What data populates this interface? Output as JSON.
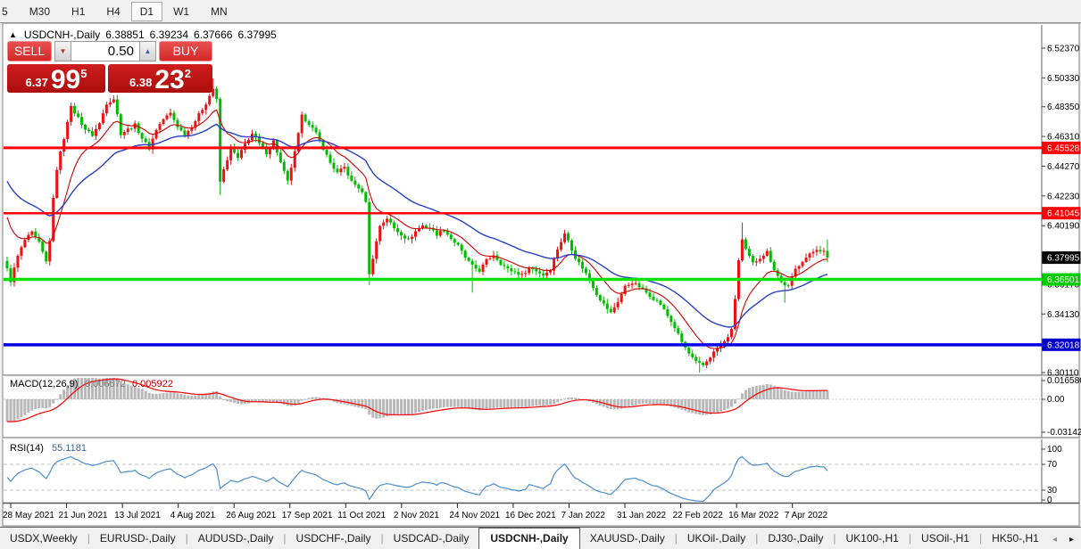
{
  "toolbar": {
    "timeframes": [
      "5",
      "M30",
      "H1",
      "H4",
      "D1",
      "W1",
      "MN"
    ],
    "active": "D1"
  },
  "icons": {
    "collapse": "▲",
    "spin_down": "▼",
    "spin_up": "▲",
    "tab_left": "◂",
    "tab_right": "▸"
  },
  "chart_header": {
    "title": "USDCNH-,Daily",
    "open": "6.38851",
    "high": "6.39234",
    "low": "6.37666",
    "close": "6.37995"
  },
  "trade_panel": {
    "sell_label": "SELL",
    "buy_label": "BUY",
    "volume": "0.50",
    "sell_price": {
      "small": "6.37",
      "big": "99",
      "sup": "5"
    },
    "buy_price": {
      "small": "6.38",
      "big": "23",
      "sup": "2"
    }
  },
  "chart_data": {
    "type": "candlestick",
    "symbol": "USDCNH-",
    "timeframe": "Daily",
    "up_color": "#ef1010",
    "down_color": "#00bc00",
    "bars_total": 232,
    "price_anchors": [
      [
        0,
        6.372
      ],
      [
        1,
        6.364
      ],
      [
        3,
        6.381
      ],
      [
        5,
        6.392
      ],
      [
        7,
        6.397
      ],
      [
        9,
        6.39
      ],
      [
        11,
        6.377
      ],
      [
        12,
        6.392
      ],
      [
        13,
        6.42
      ],
      [
        14,
        6.441
      ],
      [
        15,
        6.452
      ],
      [
        16,
        6.462
      ],
      [
        17,
        6.474
      ],
      [
        18,
        6.483
      ],
      [
        20,
        6.476
      ],
      [
        22,
        6.468
      ],
      [
        24,
        6.464
      ],
      [
        26,
        6.472
      ],
      [
        28,
        6.486
      ],
      [
        30,
        6.489
      ],
      [
        31,
        6.478
      ],
      [
        32,
        6.465
      ],
      [
        34,
        6.468
      ],
      [
        36,
        6.471
      ],
      [
        38,
        6.462
      ],
      [
        40,
        6.455
      ],
      [
        42,
        6.468
      ],
      [
        44,
        6.475
      ],
      [
        46,
        6.479
      ],
      [
        48,
        6.47
      ],
      [
        50,
        6.464
      ],
      [
        52,
        6.47
      ],
      [
        54,
        6.478
      ],
      [
        56,
        6.486
      ],
      [
        58,
        6.496
      ],
      [
        59,
        6.488
      ],
      [
        60,
        6.432
      ],
      [
        61,
        6.44
      ],
      [
        63,
        6.455
      ],
      [
        65,
        6.448
      ],
      [
        67,
        6.458
      ],
      [
        69,
        6.465
      ],
      [
        71,
        6.458
      ],
      [
        73,
        6.452
      ],
      [
        75,
        6.46
      ],
      [
        77,
        6.445
      ],
      [
        79,
        6.432
      ],
      [
        81,
        6.452
      ],
      [
        83,
        6.477
      ],
      [
        85,
        6.472
      ],
      [
        87,
        6.465
      ],
      [
        89,
        6.455
      ],
      [
        91,
        6.445
      ],
      [
        93,
        6.438
      ],
      [
        95,
        6.442
      ],
      [
        97,
        6.432
      ],
      [
        99,
        6.428
      ],
      [
        100,
        6.424
      ],
      [
        101,
        6.419
      ],
      [
        102,
        6.368
      ],
      [
        103,
        6.38
      ],
      [
        105,
        6.402
      ],
      [
        107,
        6.407
      ],
      [
        109,
        6.4
      ],
      [
        111,
        6.396
      ],
      [
        113,
        6.392
      ],
      [
        115,
        6.398
      ],
      [
        117,
        6.402
      ],
      [
        119,
        6.4
      ],
      [
        121,
        6.396
      ],
      [
        123,
        6.399
      ],
      [
        125,
        6.393
      ],
      [
        127,
        6.388
      ],
      [
        129,
        6.38
      ],
      [
        131,
        6.374
      ],
      [
        133,
        6.371
      ],
      [
        135,
        6.378
      ],
      [
        137,
        6.382
      ],
      [
        139,
        6.376
      ],
      [
        141,
        6.372
      ],
      [
        143,
        6.37
      ],
      [
        145,
        6.368
      ],
      [
        147,
        6.373
      ],
      [
        149,
        6.371
      ],
      [
        151,
        6.368
      ],
      [
        153,
        6.372
      ],
      [
        155,
        6.386
      ],
      [
        157,
        6.396
      ],
      [
        158,
        6.392
      ],
      [
        160,
        6.38
      ],
      [
        162,
        6.373
      ],
      [
        164,
        6.365
      ],
      [
        166,
        6.355
      ],
      [
        168,
        6.348
      ],
      [
        170,
        6.342
      ],
      [
        172,
        6.35
      ],
      [
        174,
        6.36
      ],
      [
        176,
        6.363
      ],
      [
        178,
        6.36
      ],
      [
        180,
        6.356
      ],
      [
        182,
        6.352
      ],
      [
        184,
        6.348
      ],
      [
        186,
        6.34
      ],
      [
        188,
        6.332
      ],
      [
        190,
        6.322
      ],
      [
        192,
        6.314
      ],
      [
        194,
        6.308
      ],
      [
        196,
        6.306
      ],
      [
        198,
        6.312
      ],
      [
        200,
        6.318
      ],
      [
        202,
        6.322
      ],
      [
        204,
        6.33
      ],
      [
        205,
        6.352
      ],
      [
        206,
        6.378
      ],
      [
        207,
        6.392
      ],
      [
        208,
        6.385
      ],
      [
        210,
        6.376
      ],
      [
        212,
        6.38
      ],
      [
        214,
        6.384
      ],
      [
        216,
        6.372
      ],
      [
        218,
        6.363
      ],
      [
        220,
        6.36
      ],
      [
        222,
        6.372
      ],
      [
        224,
        6.378
      ],
      [
        226,
        6.382
      ],
      [
        228,
        6.386
      ],
      [
        230,
        6.384
      ],
      [
        231,
        6.38
      ]
    ],
    "spikes": {
      "58": [
        6.503,
        null
      ],
      "60": [
        6.49,
        6.423
      ],
      "102": [
        6.421,
        6.361
      ],
      "131": [
        null,
        6.356
      ],
      "195": [
        null,
        6.301
      ],
      "207": [
        6.404,
        null
      ],
      "219": [
        null,
        6.349
      ],
      "231": [
        6.3923,
        6.3767
      ]
    },
    "price_axis": {
      "ticks": [
        "6.52370",
        "6.50330",
        "6.48350",
        "6.46310",
        "6.44270",
        "6.42230",
        "6.40190",
        "6.38150",
        "6.36170",
        "6.34130",
        "6.32090",
        "6.30110"
      ],
      "badges": [
        {
          "value": "6.45528",
          "bg": "#ff0000",
          "fg": "#ffffff"
        },
        {
          "value": "6.41045",
          "bg": "#ff0000",
          "fg": "#ffffff"
        },
        {
          "value": "6.37995",
          "bg": "#000000",
          "fg": "#ffffff"
        },
        {
          "value": "6.36501",
          "bg": "#00cc00",
          "fg": "#ffffff"
        },
        {
          "value": "6.32018",
          "bg": "#0000cc",
          "fg": "#ffffff"
        }
      ]
    },
    "hlines": [
      {
        "value": 6.45528,
        "color": "#ff0000",
        "width": 3
      },
      {
        "value": 6.41045,
        "color": "#ff0000",
        "width": 2.5
      },
      {
        "value": 6.36501,
        "color": "#00e100",
        "width": 3.5
      },
      {
        "value": 6.32018,
        "color": "#0000e6",
        "width": 3.5
      }
    ],
    "moving_averages": [
      {
        "period": 12,
        "color": "#d40000",
        "seed": 6.414,
        "width": 1.1
      },
      {
        "period": 33,
        "color": "#2840c8",
        "seed": 6.436,
        "width": 1.4
      }
    ],
    "macd": {
      "name": "MACD(12,26,9)",
      "value1": "0.006672",
      "value2": "0.005922",
      "axis_labels": [
        "0.016586",
        "0.00",
        "-0.031421"
      ],
      "hist_color": "#b8b8b8",
      "signal_color": "#ff0000",
      "fast": 12,
      "slow": 26,
      "signal": 9,
      "seeds": [
        6.388,
        6.408
      ]
    },
    "rsi": {
      "name": "RSI(14)",
      "value": "55.1181",
      "period": 14,
      "color": "#4c8fce",
      "levels": [
        70,
        30
      ],
      "axis_labels": [
        "100",
        "70",
        "30",
        "0"
      ]
    },
    "x_ticks": [
      "28 May 2021",
      "21 Jun 2021",
      "13 Jul 2021",
      "4 Aug 2021",
      "26 Aug 2021",
      "17 Sep 2021",
      "11 Oct 2021",
      "2 Nov 2021",
      "24 Nov 2021",
      "16 Dec 2021",
      "7 Jan 2022",
      "31 Jan 2022",
      "22 Feb 2022",
      "16 Mar 2022",
      "7 Apr 2022"
    ]
  },
  "tabs": {
    "items": [
      "USDX,Weekly",
      "EURUSD-,Daily",
      "AUDUSD-,Daily",
      "USDCHF-,Daily",
      "USDCAD-,Daily",
      "USDCNH-,Daily",
      "XAUUSD-,Daily",
      "UKOil-,Daily",
      "DJ30-,Daily",
      "UK100-,H1",
      "USOil-,H1",
      "HK50-,H1"
    ],
    "active": "USDCNH-,Daily"
  }
}
